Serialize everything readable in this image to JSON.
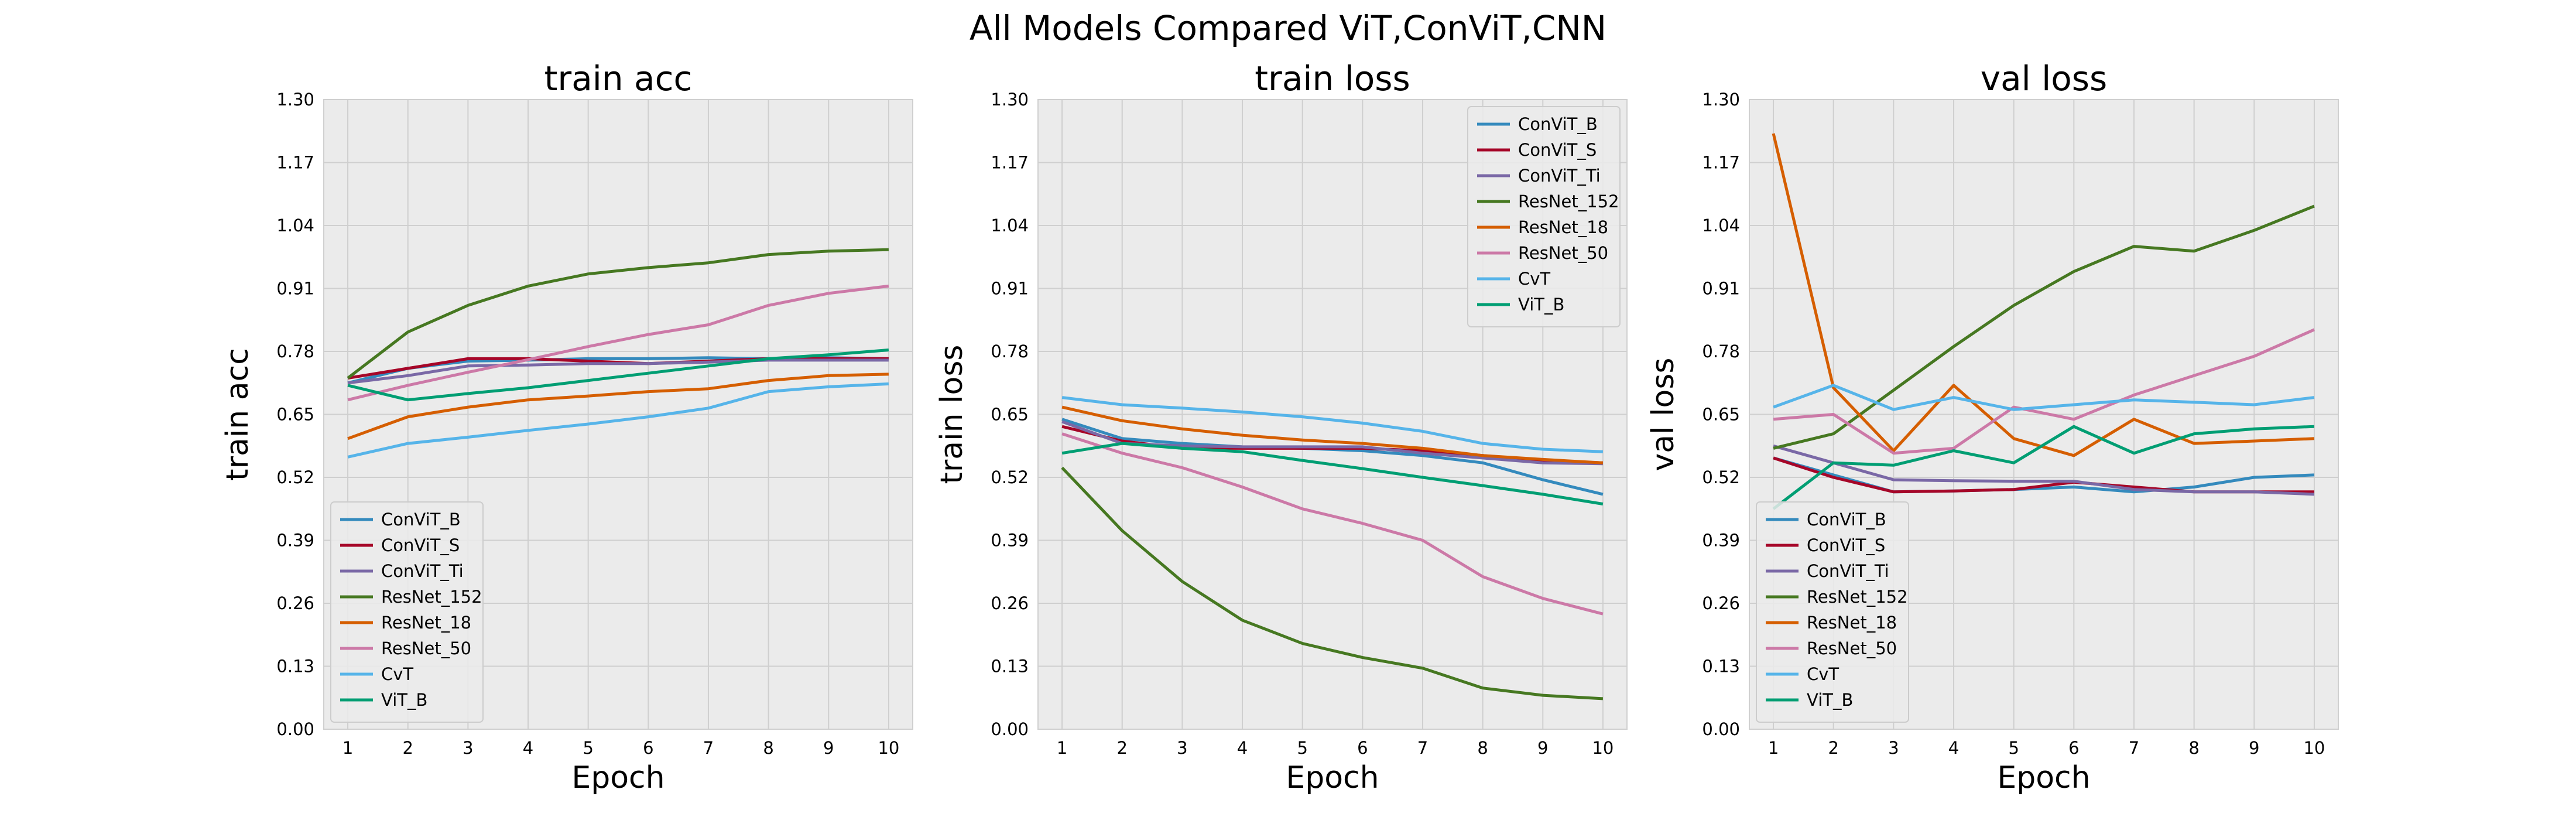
{
  "figure": {
    "suptitle": "All Models Compared ViT,ConViT,CNN"
  },
  "chart_data": [
    {
      "type": "line",
      "title": "train acc",
      "xlabel": "Epoch",
      "ylabel": "train acc",
      "x": [
        1,
        2,
        3,
        4,
        5,
        6,
        7,
        8,
        9,
        10
      ],
      "xlim": [
        0.6,
        10.4
      ],
      "ylim": [
        0,
        1.3
      ],
      "yticks": [
        "0.00",
        "0.13",
        "0.26",
        "0.39",
        "0.52",
        "0.65",
        "0.78",
        "0.91",
        "1.04",
        "1.17",
        "1.30"
      ],
      "grid": true,
      "legend_position": "lower-left",
      "series": [
        {
          "name": "ConViT_B",
          "color": "#348abd",
          "values": [
            0.715,
            0.745,
            0.76,
            0.762,
            0.765,
            0.765,
            0.767,
            0.765,
            0.767,
            0.765
          ]
        },
        {
          "name": "ConViT_S",
          "color": "#a60628",
          "values": [
            0.725,
            0.745,
            0.765,
            0.765,
            0.76,
            0.755,
            0.76,
            0.765,
            0.765,
            0.765
          ]
        },
        {
          "name": "ConViT_Ti",
          "color": "#7a68a6",
          "values": [
            0.715,
            0.73,
            0.75,
            0.752,
            0.755,
            0.755,
            0.758,
            0.762,
            0.762,
            0.762
          ]
        },
        {
          "name": "ResNet_152",
          "color": "#467821",
          "values": [
            0.725,
            0.82,
            0.875,
            0.915,
            0.94,
            0.953,
            0.963,
            0.98,
            0.987,
            0.99
          ]
        },
        {
          "name": "ResNet_18",
          "color": "#d55e00",
          "values": [
            0.6,
            0.645,
            0.665,
            0.68,
            0.688,
            0.697,
            0.703,
            0.72,
            0.73,
            0.733
          ]
        },
        {
          "name": "ResNet_50",
          "color": "#cc79a7",
          "values": [
            0.68,
            0.71,
            0.737,
            0.763,
            0.79,
            0.815,
            0.835,
            0.875,
            0.9,
            0.915
          ]
        },
        {
          "name": "CvT",
          "color": "#56b4e9",
          "values": [
            0.562,
            0.59,
            0.603,
            0.617,
            0.63,
            0.645,
            0.663,
            0.697,
            0.707,
            0.713
          ]
        },
        {
          "name": "ViT_B",
          "color": "#009e73",
          "values": [
            0.71,
            0.68,
            0.693,
            0.705,
            0.72,
            0.735,
            0.75,
            0.765,
            0.773,
            0.783
          ]
        }
      ]
    },
    {
      "type": "line",
      "title": "train loss",
      "xlabel": "Epoch",
      "ylabel": "train loss",
      "x": [
        1,
        2,
        3,
        4,
        5,
        6,
        7,
        8,
        9,
        10
      ],
      "xlim": [
        0.6,
        10.4
      ],
      "ylim": [
        0,
        1.3
      ],
      "yticks": [
        "0.00",
        "0.13",
        "0.26",
        "0.39",
        "0.52",
        "0.65",
        "0.78",
        "0.91",
        "1.04",
        "1.17",
        "1.30"
      ],
      "grid": true,
      "legend_position": "upper-right",
      "series": [
        {
          "name": "ConViT_B",
          "color": "#348abd",
          "values": [
            0.64,
            0.6,
            0.59,
            0.583,
            0.58,
            0.575,
            0.565,
            0.55,
            0.515,
            0.485
          ]
        },
        {
          "name": "ConViT_S",
          "color": "#a60628",
          "values": [
            0.625,
            0.595,
            0.58,
            0.58,
            0.58,
            0.58,
            0.575,
            0.565,
            0.555,
            0.55
          ]
        },
        {
          "name": "ConViT_Ti",
          "color": "#7a68a6",
          "values": [
            0.635,
            0.59,
            0.585,
            0.583,
            0.583,
            0.583,
            0.57,
            0.56,
            0.55,
            0.548
          ]
        },
        {
          "name": "ResNet_152",
          "color": "#467821",
          "values": [
            0.54,
            0.41,
            0.305,
            0.225,
            0.177,
            0.148,
            0.126,
            0.085,
            0.07,
            0.063
          ]
        },
        {
          "name": "ResNet_18",
          "color": "#d55e00",
          "values": [
            0.665,
            0.637,
            0.62,
            0.607,
            0.597,
            0.59,
            0.58,
            0.565,
            0.557,
            0.55
          ]
        },
        {
          "name": "ResNet_50",
          "color": "#cc79a7",
          "values": [
            0.61,
            0.57,
            0.54,
            0.5,
            0.455,
            0.425,
            0.39,
            0.315,
            0.27,
            0.238
          ]
        },
        {
          "name": "CvT",
          "color": "#56b4e9",
          "values": [
            0.685,
            0.67,
            0.663,
            0.655,
            0.645,
            0.632,
            0.615,
            0.59,
            0.578,
            0.573
          ]
        },
        {
          "name": "ViT_B",
          "color": "#009e73",
          "values": [
            0.57,
            0.59,
            0.58,
            0.573,
            0.555,
            0.538,
            0.52,
            0.503,
            0.485,
            0.465
          ]
        }
      ]
    },
    {
      "type": "line",
      "title": "val loss",
      "xlabel": "Epoch",
      "ylabel": "val loss",
      "x": [
        1,
        2,
        3,
        4,
        5,
        6,
        7,
        8,
        9,
        10
      ],
      "xlim": [
        0.6,
        10.4
      ],
      "ylim": [
        0,
        1.3
      ],
      "yticks": [
        "0.00",
        "0.13",
        "0.26",
        "0.39",
        "0.52",
        "0.65",
        "0.78",
        "0.91",
        "1.04",
        "1.17",
        "1.30"
      ],
      "grid": true,
      "legend_position": "lower-left",
      "series": [
        {
          "name": "ConViT_B",
          "color": "#348abd",
          "values": [
            0.56,
            0.525,
            0.49,
            0.492,
            0.495,
            0.5,
            0.49,
            0.5,
            0.52,
            0.525
          ]
        },
        {
          "name": "ConViT_S",
          "color": "#a60628",
          "values": [
            0.56,
            0.52,
            0.49,
            0.492,
            0.495,
            0.51,
            0.5,
            0.49,
            0.49,
            0.49
          ]
        },
        {
          "name": "ConViT_Ti",
          "color": "#7a68a6",
          "values": [
            0.585,
            0.55,
            0.515,
            0.513,
            0.512,
            0.512,
            0.495,
            0.49,
            0.49,
            0.485
          ]
        },
        {
          "name": "ResNet_152",
          "color": "#467821",
          "values": [
            0.58,
            0.61,
            0.7,
            0.79,
            0.875,
            0.945,
            0.997,
            0.987,
            1.03,
            1.08
          ]
        },
        {
          "name": "ResNet_18",
          "color": "#d55e00",
          "values": [
            1.23,
            0.705,
            0.575,
            0.71,
            0.6,
            0.565,
            0.64,
            0.59,
            0.595,
            0.6
          ]
        },
        {
          "name": "ResNet_50",
          "color": "#cc79a7",
          "values": [
            0.64,
            0.65,
            0.57,
            0.58,
            0.665,
            0.64,
            0.69,
            0.73,
            0.77,
            0.825
          ]
        },
        {
          "name": "CvT",
          "color": "#56b4e9",
          "values": [
            0.665,
            0.71,
            0.66,
            0.685,
            0.66,
            0.67,
            0.68,
            0.675,
            0.67,
            0.685
          ]
        },
        {
          "name": "ViT_B",
          "color": "#009e73",
          "values": [
            0.455,
            0.55,
            0.545,
            0.575,
            0.55,
            0.625,
            0.57,
            0.61,
            0.62,
            0.625
          ]
        }
      ]
    }
  ]
}
